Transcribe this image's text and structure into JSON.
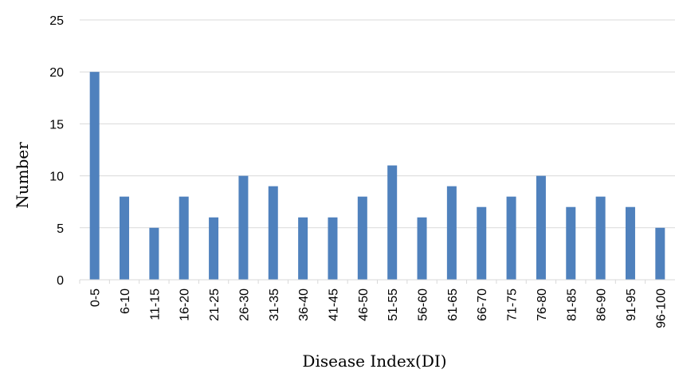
{
  "chart_data": {
    "type": "bar",
    "title": "",
    "xlabel": "Disease Index(DI)",
    "ylabel": "Number",
    "ylim": [
      0,
      25
    ],
    "yticks": [
      0,
      5,
      10,
      15,
      20,
      25
    ],
    "grid": true,
    "categories": [
      "0-5",
      "6-10",
      "11-15",
      "16-20",
      "21-25",
      "26-30",
      "31-35",
      "36-40",
      "41-45",
      "46-50",
      "51-55",
      "56-60",
      "61-65",
      "66-70",
      "71-75",
      "76-80",
      "81-85",
      "86-90",
      "91-95",
      "96-100"
    ],
    "values": [
      20,
      8,
      5,
      8,
      6,
      10,
      9,
      6,
      6,
      8,
      11,
      6,
      9,
      7,
      8,
      10,
      7,
      8,
      7,
      5
    ],
    "bar_color": "#4F81BD",
    "grid_color": "#D9D9D9"
  }
}
